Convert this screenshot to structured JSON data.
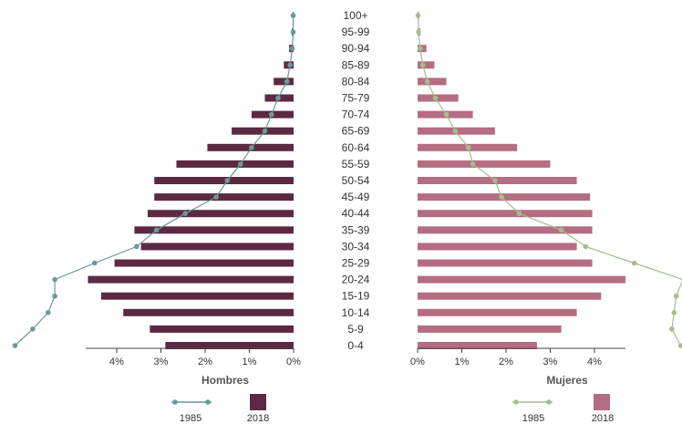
{
  "chart_data": {
    "type": "bar",
    "age_groups": [
      "0-4",
      "5-9",
      "10-14",
      "15-19",
      "20-24",
      "25-29",
      "30-34",
      "35-39",
      "40-44",
      "45-49",
      "50-54",
      "55-59",
      "60-64",
      "65-69",
      "70-74",
      "75-79",
      "80-84",
      "85-89",
      "90-94",
      "95-99",
      "100+"
    ],
    "panels": [
      {
        "title": "Hombres",
        "ticks": [
          "4%",
          "3%",
          "2%",
          "1%",
          "0%"
        ],
        "tick_values": [
          4,
          3,
          2,
          1,
          0
        ],
        "xlim": [
          0,
          4.7
        ],
        "series": [
          {
            "name": "2018",
            "type": "bar",
            "color": "#5b2a42",
            "values": [
              2.9,
              3.25,
              3.85,
              4.35,
              4.65,
              4.05,
              3.45,
              3.6,
              3.3,
              3.15,
              3.15,
              2.65,
              1.95,
              1.4,
              0.95,
              0.65,
              0.45,
              0.22,
              0.1,
              0.04,
              0.02
            ]
          },
          {
            "name": "1985",
            "type": "line",
            "color": "#6a9a9a",
            "values": [
              6.3,
              5.9,
              5.55,
              5.4,
              5.4,
              4.5,
              3.55,
              3.1,
              2.45,
              1.75,
              1.5,
              1.2,
              0.95,
              0.65,
              0.5,
              0.35,
              0.15,
              0.08,
              0.03,
              0.01,
              0.01
            ]
          }
        ]
      },
      {
        "title": "Mujeres",
        "ticks": [
          "0%",
          "1%",
          "2%",
          "3%",
          "4%"
        ],
        "tick_values": [
          0,
          1,
          2,
          3,
          4
        ],
        "xlim": [
          0,
          4.7
        ],
        "series": [
          {
            "name": "2018",
            "type": "bar",
            "color": "#b56d82",
            "values": [
              2.7,
              3.25,
              3.6,
              4.15,
              4.7,
              3.95,
              3.6,
              3.95,
              3.95,
              3.9,
              3.6,
              3.0,
              2.25,
              1.75,
              1.25,
              0.92,
              0.65,
              0.38,
              0.2,
              0.06,
              0.03
            ]
          },
          {
            "name": "1985",
            "type": "line",
            "color": "#a3bf8c",
            "values": [
              5.95,
              5.75,
              5.8,
              5.85,
              6.0,
              4.9,
              3.8,
              3.25,
              2.3,
              1.9,
              1.75,
              1.25,
              1.15,
              0.85,
              0.65,
              0.4,
              0.22,
              0.12,
              0.06,
              0.02,
              0.01
            ]
          }
        ]
      }
    ]
  },
  "legend": {
    "left": [
      {
        "label": "1985"
      },
      {
        "label": "2018"
      }
    ],
    "right": [
      {
        "label": "1985"
      },
      {
        "label": "2018"
      }
    ]
  }
}
